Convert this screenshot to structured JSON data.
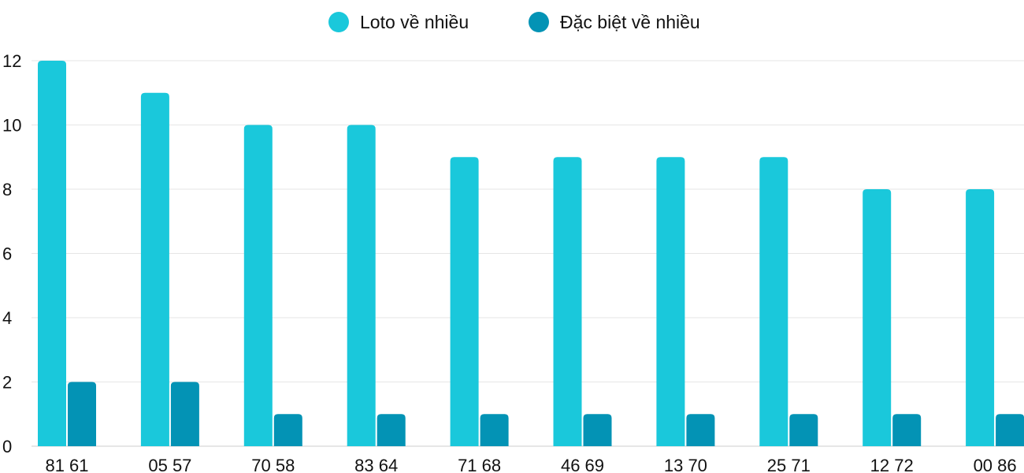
{
  "chart_data": {
    "type": "bar",
    "title": "",
    "xlabel": "",
    "ylabel": "",
    "categories": [
      "81 61",
      "05 57",
      "70 58",
      "83 64",
      "71 68",
      "46 69",
      "13 70",
      "25 71",
      "12 72",
      "00 86"
    ],
    "series": [
      {
        "name": "Loto về nhiều",
        "color": "#1AC8DB",
        "values": [
          12,
          11,
          10,
          10,
          9,
          9,
          9,
          9,
          8,
          8
        ]
      },
      {
        "name": "Đặc biệt về nhiều",
        "color": "#0393B5",
        "values": [
          2,
          2,
          1,
          1,
          1,
          1,
          1,
          1,
          1,
          1
        ]
      }
    ],
    "ylim": [
      0,
      12
    ],
    "yticks": [
      0,
      2,
      4,
      6,
      8,
      10,
      12
    ],
    "grid": true,
    "legend": "top-center"
  }
}
